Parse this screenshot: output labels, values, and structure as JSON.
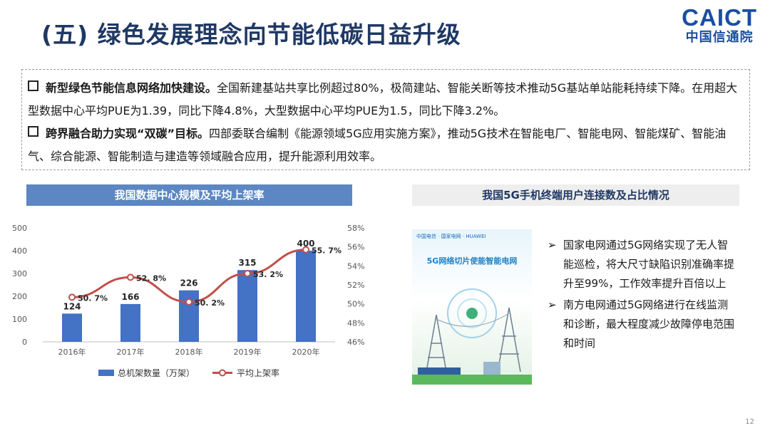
{
  "slide": {
    "title": "(五) 绿色发展理念向节能低碳日益升级",
    "page_number": "12"
  },
  "logo": {
    "en": "CAICT",
    "cn": "中国信通院"
  },
  "watermark": "CAICT 中国信通院",
  "summary": {
    "p1_bold": "新型绿色节能信息网络加快建设。",
    "p1_text": "全国新建基站共享比例超过80%，极简建站、智能关断等技术推动5G基站单站能耗持续下降。在用超大型数据中心平均PUE为1.39，同比下降4.8%，大型数据中心平均PUE为1.5，同比下降3.2%。",
    "p2_bold": "跨界融合助力实现“双碳”目标。",
    "p2_text": "四部委联合编制《能源领域5G应用实施方案》，推动5G技术在智能电厂、智能电网、智能煤矿、智能油气、综合能源、智能制造与建造等领域融合应用，提升能源利用效率。"
  },
  "left_panel": {
    "header": "我国数据中心规模及平均上架率"
  },
  "right_panel": {
    "header": "我国5G手机终端用户连接数及占比情况",
    "poster_brands": "中国电信 · 国家电网 · HUAWEI",
    "poster_title": "5G网络切片使能智能电网",
    "bullets": [
      "国家电网通过5G网络实现了无人智能巡检，将大尺寸缺陷识别准确率提升至99%，工作效率提升百倍以上",
      "南方电网通过5G网络进行在线监测和诊断，最大程度减少故障停电范围和时间"
    ],
    "bullet_marker": "➢"
  },
  "chart_data": {
    "type": "bar",
    "categories": [
      "2016年",
      "2017年",
      "2018年",
      "2019年",
      "2020年"
    ],
    "series": [
      {
        "name": "总机架数量（万架）",
        "type": "bar",
        "axis": "left",
        "values": [
          124,
          166,
          226,
          315,
          400
        ],
        "labels": [
          "124",
          "166",
          "226",
          "315",
          "400"
        ],
        "color": "#4472c4"
      },
      {
        "name": "平均上架率",
        "type": "line",
        "axis": "right",
        "values": [
          50.7,
          52.8,
          50.2,
          53.2,
          55.7
        ],
        "labels": [
          "50. 7%",
          "52. 8%",
          "50. 2%",
          "53. 2%",
          "55. 7%"
        ],
        "color": "#c0504d"
      }
    ],
    "ylim_left": [
      0,
      500
    ],
    "yticks_left": [
      0,
      100,
      200,
      300,
      400,
      500
    ],
    "ylim_right": [
      46,
      58
    ],
    "yticks_right": [
      "46%",
      "48%",
      "50%",
      "52%",
      "54%",
      "56%",
      "58%"
    ],
    "grid": false,
    "legend": "bottom"
  }
}
